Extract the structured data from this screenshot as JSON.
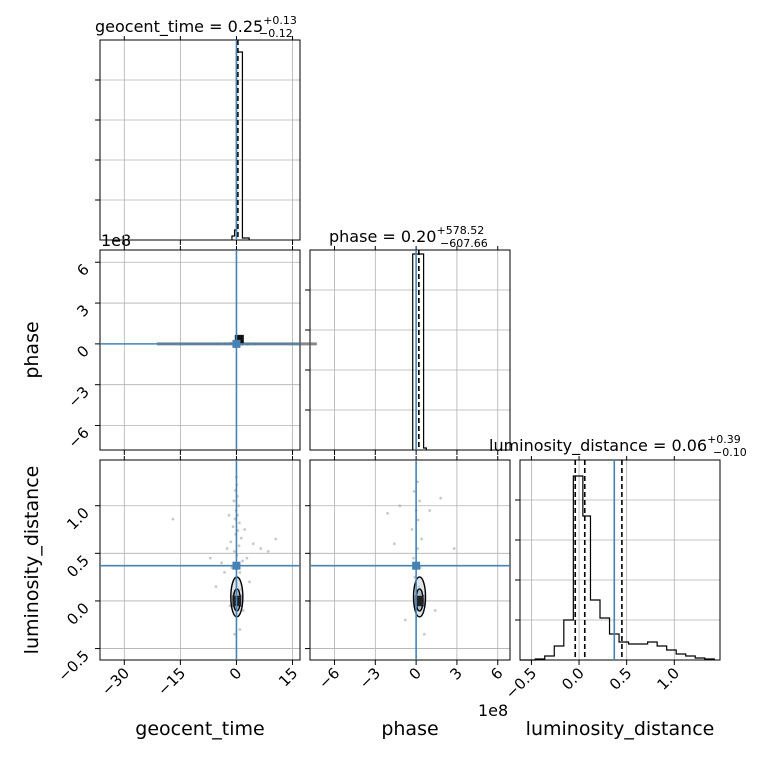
{
  "chart_data": {
    "type": "corner",
    "truth_color": "#4682b4",
    "axis_labels": [
      "geocent_time",
      "phase",
      "luminosity_distance"
    ],
    "offset_texts": {
      "phase_y": "1e8",
      "phase_x": "1e8"
    },
    "diagonal_titles": {
      "geocent_time": {
        "prefix": "geocent_time = ",
        "value": "0.25",
        "plus": "+0.13",
        "minus": "−0.12"
      },
      "phase": {
        "prefix": "phase = ",
        "value": "0.20",
        "plus": "+578.52",
        "minus": "−607.66"
      },
      "luminosity_distance": {
        "prefix": "luminosity_distance = ",
        "value": "0.06",
        "plus": "+0.39",
        "minus": "−0.10"
      }
    },
    "ranges": {
      "geocent_time": [
        -36.5,
        17
      ],
      "phase": [
        -7.8,
        6.9
      ],
      "luminosity_distance": [
        -0.62,
        1.48
      ]
    },
    "truths": {
      "geocent_time": 0.0,
      "phase": 0.0,
      "luminosity_distance": 0.37
    },
    "ticks": {
      "geocent_time": [
        {
          "v": -30,
          "label": "−30"
        },
        {
          "v": -15,
          "label": "−15"
        },
        {
          "v": 0,
          "label": "0"
        },
        {
          "v": 15,
          "label": "15"
        }
      ],
      "phase": [
        {
          "v": -6,
          "label": "−6"
        },
        {
          "v": -3,
          "label": "−3"
        },
        {
          "v": 0,
          "label": "0"
        },
        {
          "v": 3,
          "label": "3"
        },
        {
          "v": 6,
          "label": "6"
        }
      ],
      "phase_y": [
        {
          "v": -6,
          "label": "−6"
        },
        {
          "v": -3,
          "label": "−3"
        },
        {
          "v": 0,
          "label": "0"
        },
        {
          "v": 3,
          "label": "3"
        },
        {
          "v": 6,
          "label": "6"
        }
      ],
      "luminosity_distance": [
        {
          "v": -0.5,
          "label": "−0.5"
        },
        {
          "v": 0.0,
          "label": "0.0"
        },
        {
          "v": 0.5,
          "label": "0.5"
        },
        {
          "v": 1.0,
          "label": "1.0"
        }
      ],
      "luminosity_distance_y": [
        {
          "v": -0.5,
          "label": "−0.5"
        },
        {
          "v": 0.0,
          "label": "0.0"
        },
        {
          "v": 0.5,
          "label": "0.5"
        },
        {
          "v": 1.0,
          "label": "1.0"
        }
      ]
    },
    "quantile_lines": {
      "geocent_time": [
        0.13,
        0.25,
        0.38
      ],
      "phase": [
        -607.46,
        0.2,
        578.72
      ],
      "luminosity_distance": [
        -0.04,
        0.06,
        0.45
      ]
    },
    "hist_geocent_time": [
      {
        "x0": -1.2,
        "x1": -0.5,
        "h": 0.02
      },
      {
        "x0": -0.5,
        "x1": 0.0,
        "h": 0.05
      },
      {
        "x0": 0.0,
        "x1": 0.7,
        "h": 0.94
      },
      {
        "x0": 0.7,
        "x1": 1.6,
        "h": 0.94
      },
      {
        "x0": 1.6,
        "x1": 3.4,
        "h": 0.01
      }
    ],
    "hist_phase": [
      {
        "x0": -0.25,
        "x1": 0.25,
        "h": 0.98
      },
      {
        "x0": 0.25,
        "x1": 0.55,
        "h": 0.98
      },
      {
        "x0": 0.55,
        "x1": 0.75,
        "h": 0.01
      }
    ],
    "hist_luminosity_distance": [
      {
        "x0": -0.62,
        "x1": -0.46,
        "h": 0.0
      },
      {
        "x0": -0.46,
        "x1": -0.36,
        "h": 0.005
      },
      {
        "x0": -0.36,
        "x1": -0.26,
        "h": 0.02
      },
      {
        "x0": -0.26,
        "x1": -0.16,
        "h": 0.07
      },
      {
        "x0": -0.16,
        "x1": -0.06,
        "h": 0.2
      },
      {
        "x0": -0.06,
        "x1": 0.04,
        "h": 0.92
      },
      {
        "x0": 0.04,
        "x1": 0.12,
        "h": 0.72
      },
      {
        "x0": 0.12,
        "x1": 0.22,
        "h": 0.3
      },
      {
        "x0": 0.22,
        "x1": 0.32,
        "h": 0.21
      },
      {
        "x0": 0.32,
        "x1": 0.42,
        "h": 0.13
      },
      {
        "x0": 0.42,
        "x1": 0.52,
        "h": 0.09
      },
      {
        "x0": 0.52,
        "x1": 0.62,
        "h": 0.08
      },
      {
        "x0": 0.62,
        "x1": 0.72,
        "h": 0.08
      },
      {
        "x0": 0.72,
        "x1": 0.82,
        "h": 0.09
      },
      {
        "x0": 0.82,
        "x1": 0.92,
        "h": 0.07
      },
      {
        "x0": 0.92,
        "x1": 1.02,
        "h": 0.05
      },
      {
        "x0": 1.02,
        "x1": 1.12,
        "h": 0.03
      },
      {
        "x0": 1.12,
        "x1": 1.22,
        "h": 0.02
      },
      {
        "x0": 1.22,
        "x1": 1.32,
        "h": 0.01
      },
      {
        "x0": 1.32,
        "x1": 1.42,
        "h": 0.005
      }
    ],
    "scatter_ld_vs_geocent_time": [
      {
        "x": 0.2,
        "y": 0.05
      },
      {
        "x": 1.1,
        "y": 0.12
      },
      {
        "x": -0.8,
        "y": 0.08
      },
      {
        "x": 0.5,
        "y": -0.15
      },
      {
        "x": -0.3,
        "y": 0.22
      },
      {
        "x": 0.9,
        "y": 0.3
      },
      {
        "x": -1.2,
        "y": 0.35
      },
      {
        "x": 1.6,
        "y": 0.42
      },
      {
        "x": 0.1,
        "y": 0.48
      },
      {
        "x": -0.6,
        "y": 0.52
      },
      {
        "x": 0.7,
        "y": 0.58
      },
      {
        "x": -1.5,
        "y": 0.62
      },
      {
        "x": 1.3,
        "y": 0.66
      },
      {
        "x": -0.2,
        "y": 0.7
      },
      {
        "x": 0.4,
        "y": 0.74
      },
      {
        "x": -0.9,
        "y": 0.78
      },
      {
        "x": 0.8,
        "y": 0.82
      },
      {
        "x": -0.4,
        "y": 0.86
      },
      {
        "x": 0.3,
        "y": 0.9
      },
      {
        "x": -0.1,
        "y": 0.95
      },
      {
        "x": 0.6,
        "y": 1.0
      },
      {
        "x": -0.7,
        "y": 1.05
      },
      {
        "x": 0.2,
        "y": 1.1
      },
      {
        "x": -0.3,
        "y": 1.16
      },
      {
        "x": 0.1,
        "y": 1.22
      },
      {
        "x": 0.0,
        "y": 1.3
      },
      {
        "x": -2.5,
        "y": 0.55
      },
      {
        "x": 2.8,
        "y": 0.45
      },
      {
        "x": -3.2,
        "y": 0.3
      },
      {
        "x": 3.5,
        "y": 0.2
      },
      {
        "x": -2.0,
        "y": 0.9
      },
      {
        "x": 2.2,
        "y": 0.75
      },
      {
        "x": 4.5,
        "y": 0.6
      },
      {
        "x": -4.0,
        "y": 0.4
      },
      {
        "x": 6.5,
        "y": 0.55
      },
      {
        "x": -5.5,
        "y": 0.15
      },
      {
        "x": 8.5,
        "y": 0.52
      },
      {
        "x": -7.0,
        "y": 0.45
      },
      {
        "x": 10.5,
        "y": 0.65
      },
      {
        "x": -17.0,
        "y": 0.86
      },
      {
        "x": 1.8,
        "y": -0.1
      },
      {
        "x": -1.7,
        "y": -0.05
      },
      {
        "x": 0.9,
        "y": -0.3
      },
      {
        "x": -0.5,
        "y": -0.35
      }
    ],
    "scatter_ld_vs_phase": [
      {
        "x": 0.05,
        "y": 0.05
      },
      {
        "x": 0.2,
        "y": 0.15
      },
      {
        "x": -0.1,
        "y": 0.25
      },
      {
        "x": 0.3,
        "y": 0.35
      },
      {
        "x": -0.2,
        "y": 0.45
      },
      {
        "x": 0.1,
        "y": 0.55
      },
      {
        "x": 0.4,
        "y": 0.65
      },
      {
        "x": -0.3,
        "y": 0.75
      },
      {
        "x": 0.15,
        "y": 0.85
      },
      {
        "x": 0.0,
        "y": 0.95
      },
      {
        "x": 0.25,
        "y": 1.05
      },
      {
        "x": -0.15,
        "y": 1.15
      },
      {
        "x": 0.1,
        "y": 1.25
      },
      {
        "x": -1.2,
        "y": 1.0
      },
      {
        "x": 1.0,
        "y": 0.95
      },
      {
        "x": -2.1,
        "y": 0.92
      },
      {
        "x": 1.8,
        "y": 1.08
      },
      {
        "x": -1.6,
        "y": 0.6
      },
      {
        "x": 2.8,
        "y": 0.55
      },
      {
        "x": 1.4,
        "y": -0.1
      },
      {
        "x": -0.8,
        "y": -0.2
      },
      {
        "x": 0.6,
        "y": -0.35
      }
    ],
    "scatter_phase_vs_geocent_time": [
      {
        "x": -1.5,
        "y": 0.05
      },
      {
        "x": 1.5,
        "y": -0.05
      },
      {
        "x": -3.0,
        "y": 0.02
      },
      {
        "x": 3.0,
        "y": -0.03
      },
      {
        "x": 5.0,
        "y": 0.0
      },
      {
        "x": -5.0,
        "y": 0.01
      }
    ]
  }
}
